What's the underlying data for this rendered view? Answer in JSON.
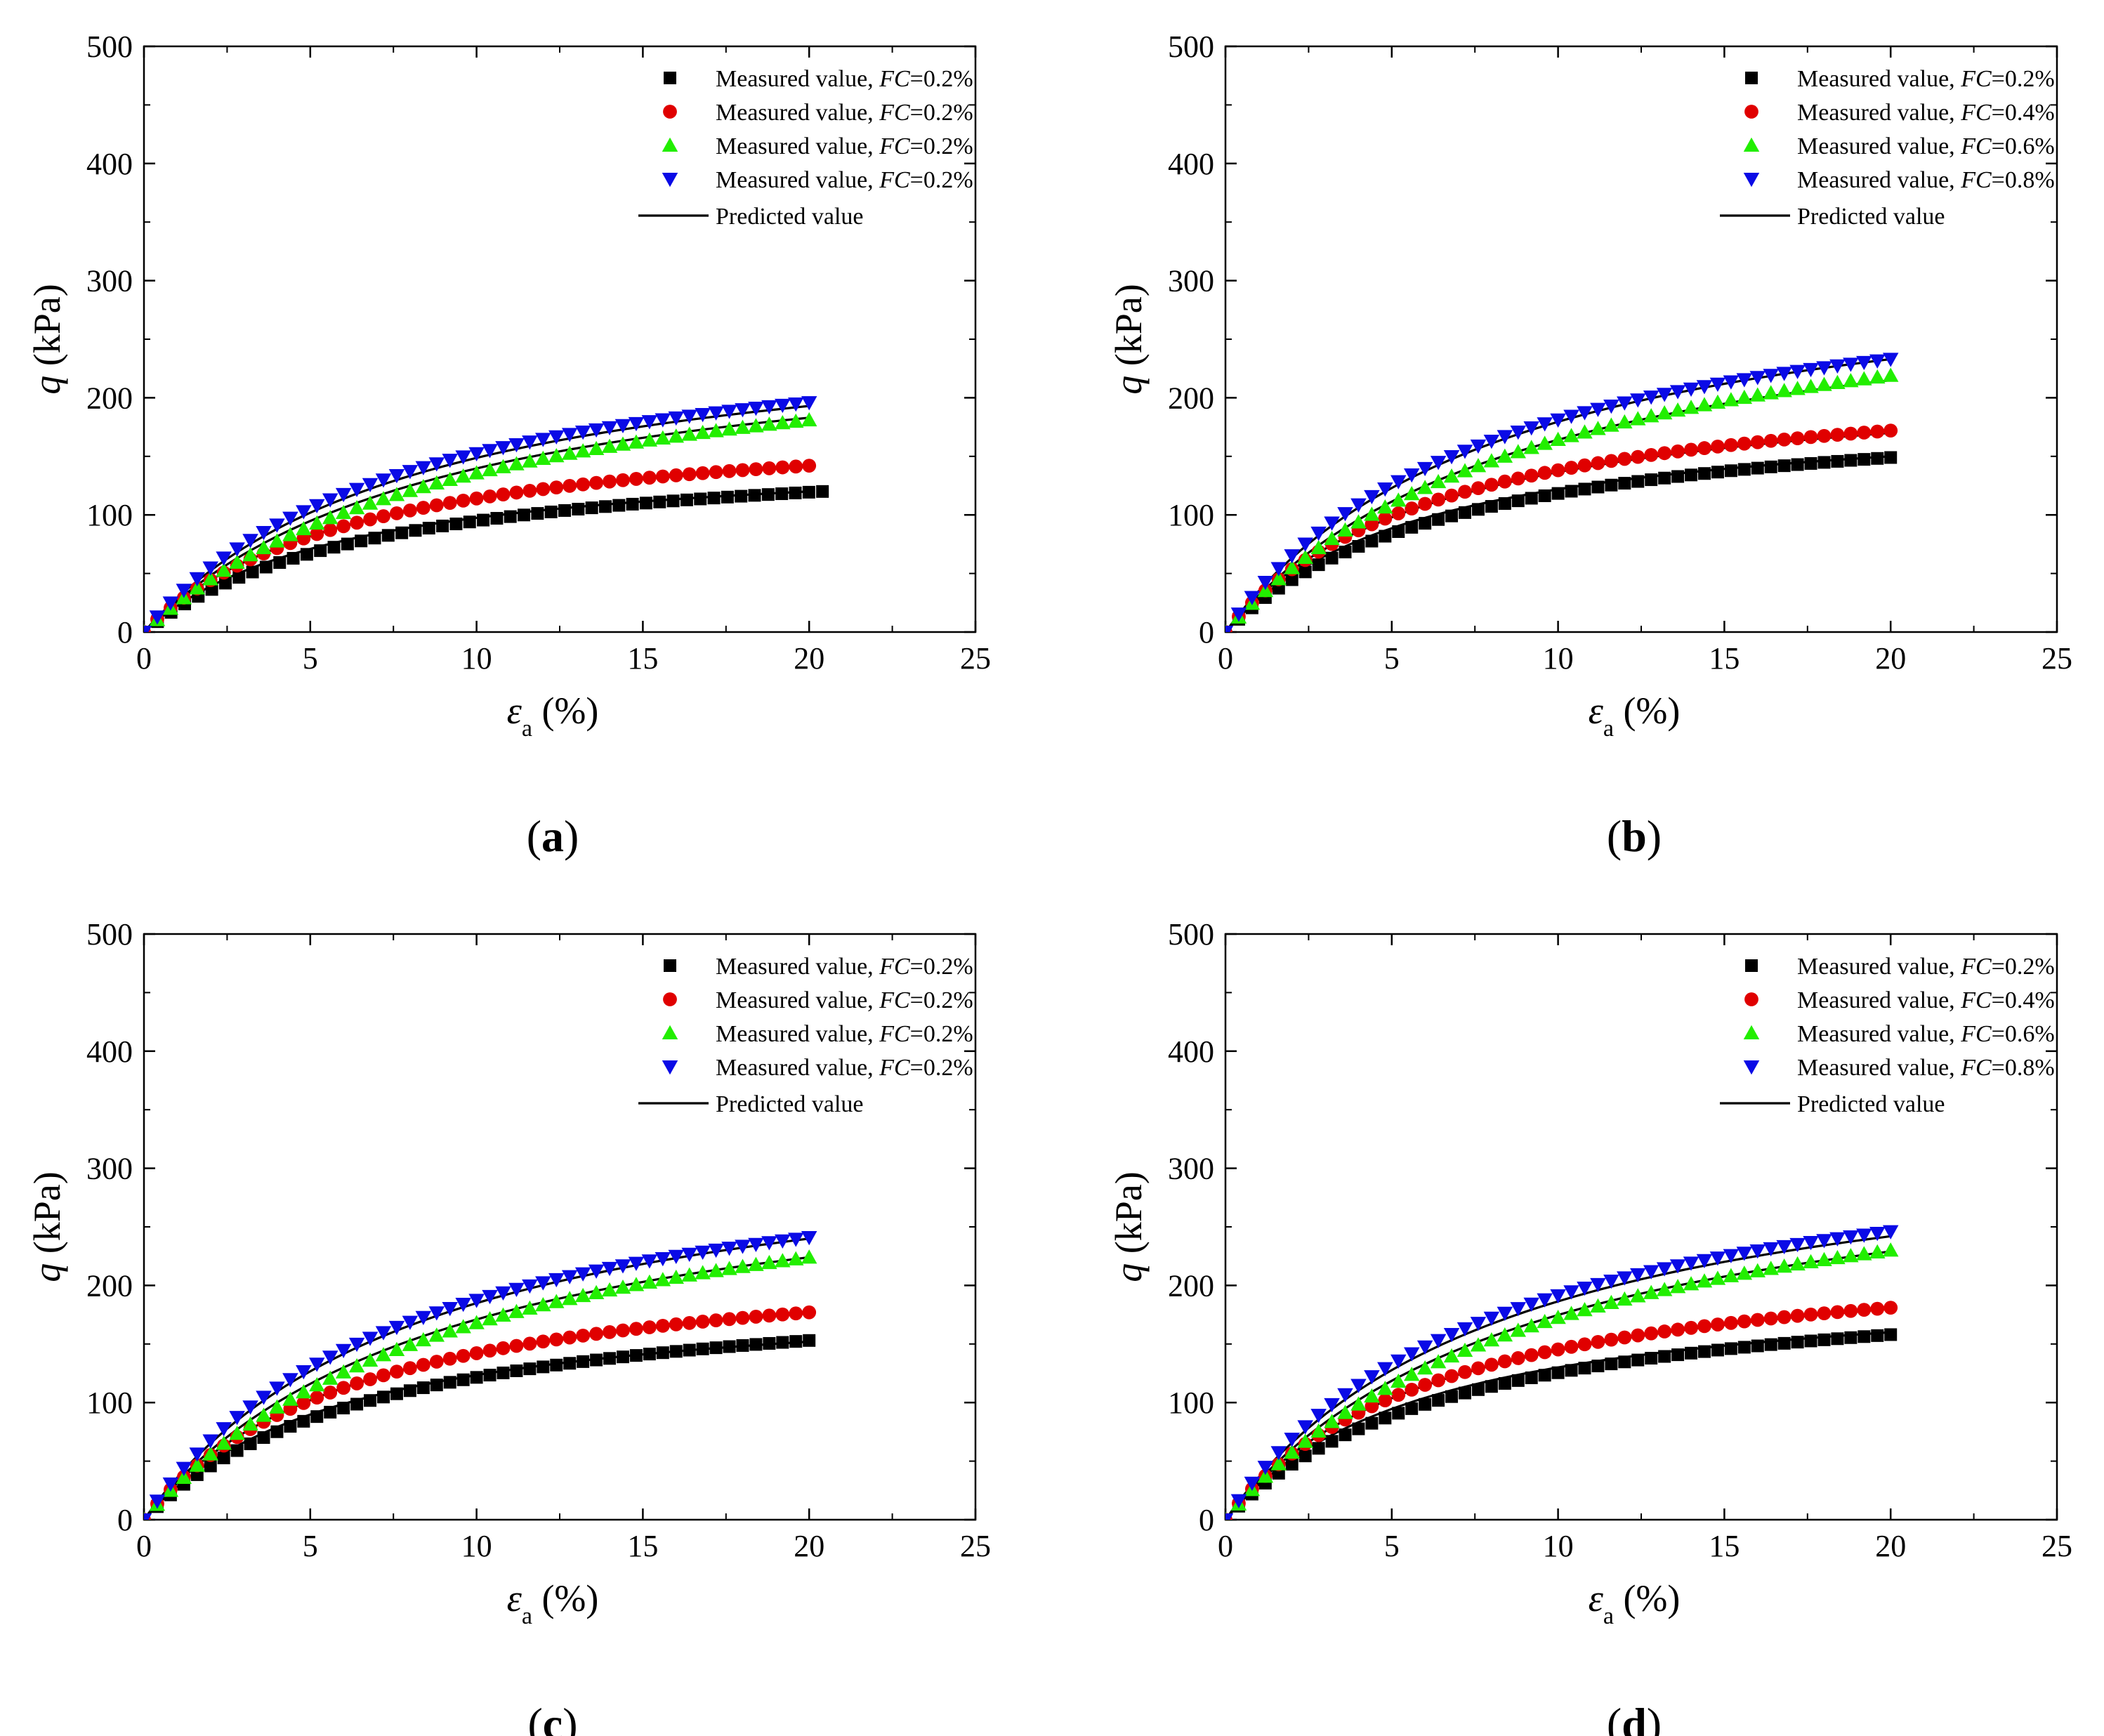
{
  "figure": {
    "series_styles": [
      {
        "key": "black",
        "marker": "square",
        "color": "#000000"
      },
      {
        "key": "red",
        "marker": "circle",
        "color": "#e00000"
      },
      {
        "key": "green",
        "marker": "triangle-up",
        "color": "#22ee00"
      },
      {
        "key": "blue",
        "marker": "triangle-down",
        "color": "#0a0ae6"
      },
      {
        "key": "predicted",
        "marker": "line",
        "color": "#000000"
      }
    ]
  },
  "chart_data": [
    {
      "panel": "a",
      "type": "scatter",
      "title": "",
      "panel_label": {
        "open": "(",
        "letter": "a",
        "close": ")"
      },
      "xlabel": {
        "symbol": "ε",
        "subscript": "a",
        "unit": " (%)"
      },
      "ylabel": {
        "symbol": "q",
        "unit": " (kPa)"
      },
      "xlim": [
        0,
        25
      ],
      "ylim": [
        0,
        500
      ],
      "xticks": [
        0,
        5,
        10,
        15,
        20,
        25
      ],
      "yticks": [
        0,
        100,
        200,
        300,
        400,
        500
      ],
      "legend": [
        {
          "prefix": "Measured value, ",
          "var": "FC",
          "suffix": "=0.2%",
          "marker": "square",
          "color": "#000000"
        },
        {
          "prefix": "Measured value, ",
          "var": "FC",
          "suffix": "=0.2%",
          "marker": "circle",
          "color": "#e00000"
        },
        {
          "prefix": "Measured value, ",
          "var": "FC",
          "suffix": "=0.2%",
          "marker": "triangle-up",
          "color": "#22ee00"
        },
        {
          "prefix": "Measured value, ",
          "var": "FC",
          "suffix": "=0.2%",
          "marker": "triangle-down",
          "color": "#0a0ae6"
        },
        {
          "prefix": "Predicted value",
          "var": "",
          "suffix": "",
          "marker": "line",
          "color": "#000000"
        }
      ],
      "series": [
        {
          "name": "Measured value, FC=0.2%",
          "marker": "square",
          "color": "#000000",
          "x_end": 20.4,
          "final": 120
        },
        {
          "name": "Measured value, FC=0.2%",
          "marker": "circle",
          "color": "#e00000",
          "x_end": 20.0,
          "final": 142
        },
        {
          "name": "Measured value, FC=0.2%",
          "marker": "triangle-up",
          "color": "#22ee00",
          "x_end": 20.0,
          "final": 181
        },
        {
          "name": "Measured value, FC=0.2%",
          "marker": "triangle-down",
          "color": "#0a0ae6",
          "x_end": 20.0,
          "final": 196
        }
      ],
      "predicted": [
        {
          "x_end": 20.0,
          "final": 120
        },
        {
          "x_end": 20.0,
          "final": 142
        },
        {
          "x_end": 20.0,
          "final": 183
        },
        {
          "x_end": 20.0,
          "final": 193
        }
      ]
    },
    {
      "panel": "b",
      "type": "scatter",
      "title": "",
      "panel_label": {
        "open": "(",
        "letter": "b",
        "close": ")"
      },
      "xlabel": {
        "symbol": "ε",
        "subscript": "a",
        "unit": " (%)"
      },
      "ylabel": {
        "symbol": "q",
        "unit": " (kPa)"
      },
      "xlim": [
        0,
        25
      ],
      "ylim": [
        0,
        500
      ],
      "xticks": [
        0,
        5,
        10,
        15,
        20,
        25
      ],
      "yticks": [
        0,
        100,
        200,
        300,
        400,
        500
      ],
      "legend": [
        {
          "prefix": "Measured value, ",
          "var": "FC",
          "suffix": "=0.2%",
          "marker": "square",
          "color": "#000000"
        },
        {
          "prefix": "Measured value, ",
          "var": "FC",
          "suffix": "=0.4%",
          "marker": "circle",
          "color": "#e00000"
        },
        {
          "prefix": "Measured value, ",
          "var": "FC",
          "suffix": "=0.6%",
          "marker": "triangle-up",
          "color": "#22ee00"
        },
        {
          "prefix": "Measured value, ",
          "var": "FC",
          "suffix": "=0.8%",
          "marker": "triangle-down",
          "color": "#0a0ae6"
        },
        {
          "prefix": "Predicted value",
          "var": "",
          "suffix": "",
          "marker": "line",
          "color": "#000000"
        }
      ],
      "series": [
        {
          "name": "Measured value, FC=0.2%",
          "marker": "square",
          "color": "#000000",
          "x_end": 20.0,
          "final": 149
        },
        {
          "name": "Measured value, FC=0.4%",
          "marker": "circle",
          "color": "#e00000",
          "x_end": 20.0,
          "final": 172
        },
        {
          "name": "Measured value, FC=0.6%",
          "marker": "triangle-up",
          "color": "#22ee00",
          "x_end": 20.0,
          "final": 219
        },
        {
          "name": "Measured value, FC=0.8%",
          "marker": "triangle-down",
          "color": "#0a0ae6",
          "x_end": 20.0,
          "final": 233
        }
      ],
      "predicted": [
        {
          "x_end": 20.0,
          "final": 150
        },
        {
          "x_end": 20.0,
          "final": 170
        },
        {
          "x_end": 20.0,
          "final": 215
        },
        {
          "x_end": 20.0,
          "final": 233
        }
      ]
    },
    {
      "panel": "c",
      "type": "scatter",
      "title": "",
      "panel_label": {
        "open": "(",
        "letter": "c",
        "close": ")"
      },
      "xlabel": {
        "symbol": "ε",
        "subscript": "a",
        "unit": " (%)"
      },
      "ylabel": {
        "symbol": "q",
        "unit": " (kPa)"
      },
      "xlim": [
        0,
        25
      ],
      "ylim": [
        0,
        500
      ],
      "xticks": [
        0,
        5,
        10,
        15,
        20,
        25
      ],
      "yticks": [
        0,
        100,
        200,
        300,
        400,
        500
      ],
      "legend": [
        {
          "prefix": "Measured value, ",
          "var": "FC",
          "suffix": "=0.2%",
          "marker": "square",
          "color": "#000000"
        },
        {
          "prefix": "Measured value, ",
          "var": "FC",
          "suffix": "=0.2%",
          "marker": "circle",
          "color": "#e00000"
        },
        {
          "prefix": "Measured value, ",
          "var": "FC",
          "suffix": "=0.2%",
          "marker": "triangle-up",
          "color": "#22ee00"
        },
        {
          "prefix": "Measured value, ",
          "var": "FC",
          "suffix": "=0.2%",
          "marker": "triangle-down",
          "color": "#0a0ae6"
        },
        {
          "prefix": "Predicted value",
          "var": "",
          "suffix": "",
          "marker": "line",
          "color": "#000000"
        }
      ],
      "series": [
        {
          "name": "Measured value, FC=0.2%",
          "marker": "square",
          "color": "#000000",
          "x_end": 20.0,
          "final": 153
        },
        {
          "name": "Measured value, FC=0.2%",
          "marker": "circle",
          "color": "#e00000",
          "x_end": 20.0,
          "final": 177
        },
        {
          "name": "Measured value, FC=0.2%",
          "marker": "triangle-up",
          "color": "#22ee00",
          "x_end": 20.0,
          "final": 224
        },
        {
          "name": "Measured value, FC=0.2%",
          "marker": "triangle-down",
          "color": "#0a0ae6",
          "x_end": 20.0,
          "final": 241
        }
      ],
      "predicted": [
        {
          "x_end": 20.0,
          "final": 152
        },
        {
          "x_end": 20.0,
          "final": 177
        },
        {
          "x_end": 20.0,
          "final": 224
        },
        {
          "x_end": 20.0,
          "final": 240
        }
      ]
    },
    {
      "panel": "d",
      "type": "scatter",
      "title": "",
      "panel_label": {
        "open": "(",
        "letter": "d",
        "close": ")"
      },
      "xlabel": {
        "symbol": "ε",
        "subscript": "a",
        "unit": " (%)"
      },
      "ylabel": {
        "symbol": "q",
        "unit": " (kPa)"
      },
      "xlim": [
        0,
        25
      ],
      "ylim": [
        0,
        500
      ],
      "xticks": [
        0,
        5,
        10,
        15,
        20,
        25
      ],
      "yticks": [
        0,
        100,
        200,
        300,
        400,
        500
      ],
      "legend": [
        {
          "prefix": "Measured value, ",
          "var": "FC",
          "suffix": "=0.2%",
          "marker": "square",
          "color": "#000000"
        },
        {
          "prefix": "Measured value, ",
          "var": "FC",
          "suffix": "=0.4%",
          "marker": "circle",
          "color": "#e00000"
        },
        {
          "prefix": "Measured value, ",
          "var": "FC",
          "suffix": "=0.6%",
          "marker": "triangle-up",
          "color": "#22ee00"
        },
        {
          "prefix": "Measured value, ",
          "var": "FC",
          "suffix": "=0.8%",
          "marker": "triangle-down",
          "color": "#0a0ae6"
        },
        {
          "prefix": "Predicted value",
          "var": "",
          "suffix": "",
          "marker": "line",
          "color": "#000000"
        }
      ],
      "series": [
        {
          "name": "Measured value, FC=0.2%",
          "marker": "square",
          "color": "#000000",
          "x_end": 20.0,
          "final": 158
        },
        {
          "name": "Measured value, FC=0.4%",
          "marker": "circle",
          "color": "#e00000",
          "x_end": 20.0,
          "final": 181
        },
        {
          "name": "Measured value, FC=0.6%",
          "marker": "triangle-up",
          "color": "#22ee00",
          "x_end": 20.0,
          "final": 230
        },
        {
          "name": "Measured value, FC=0.8%",
          "marker": "triangle-down",
          "color": "#0a0ae6",
          "x_end": 20.0,
          "final": 246
        }
      ],
      "predicted": [
        {
          "x_end": 20.0,
          "final": 160
        },
        {
          "x_end": 20.0,
          "final": 180
        },
        {
          "x_end": 20.0,
          "final": 229
        },
        {
          "x_end": 20.0,
          "final": 242
        }
      ]
    }
  ]
}
